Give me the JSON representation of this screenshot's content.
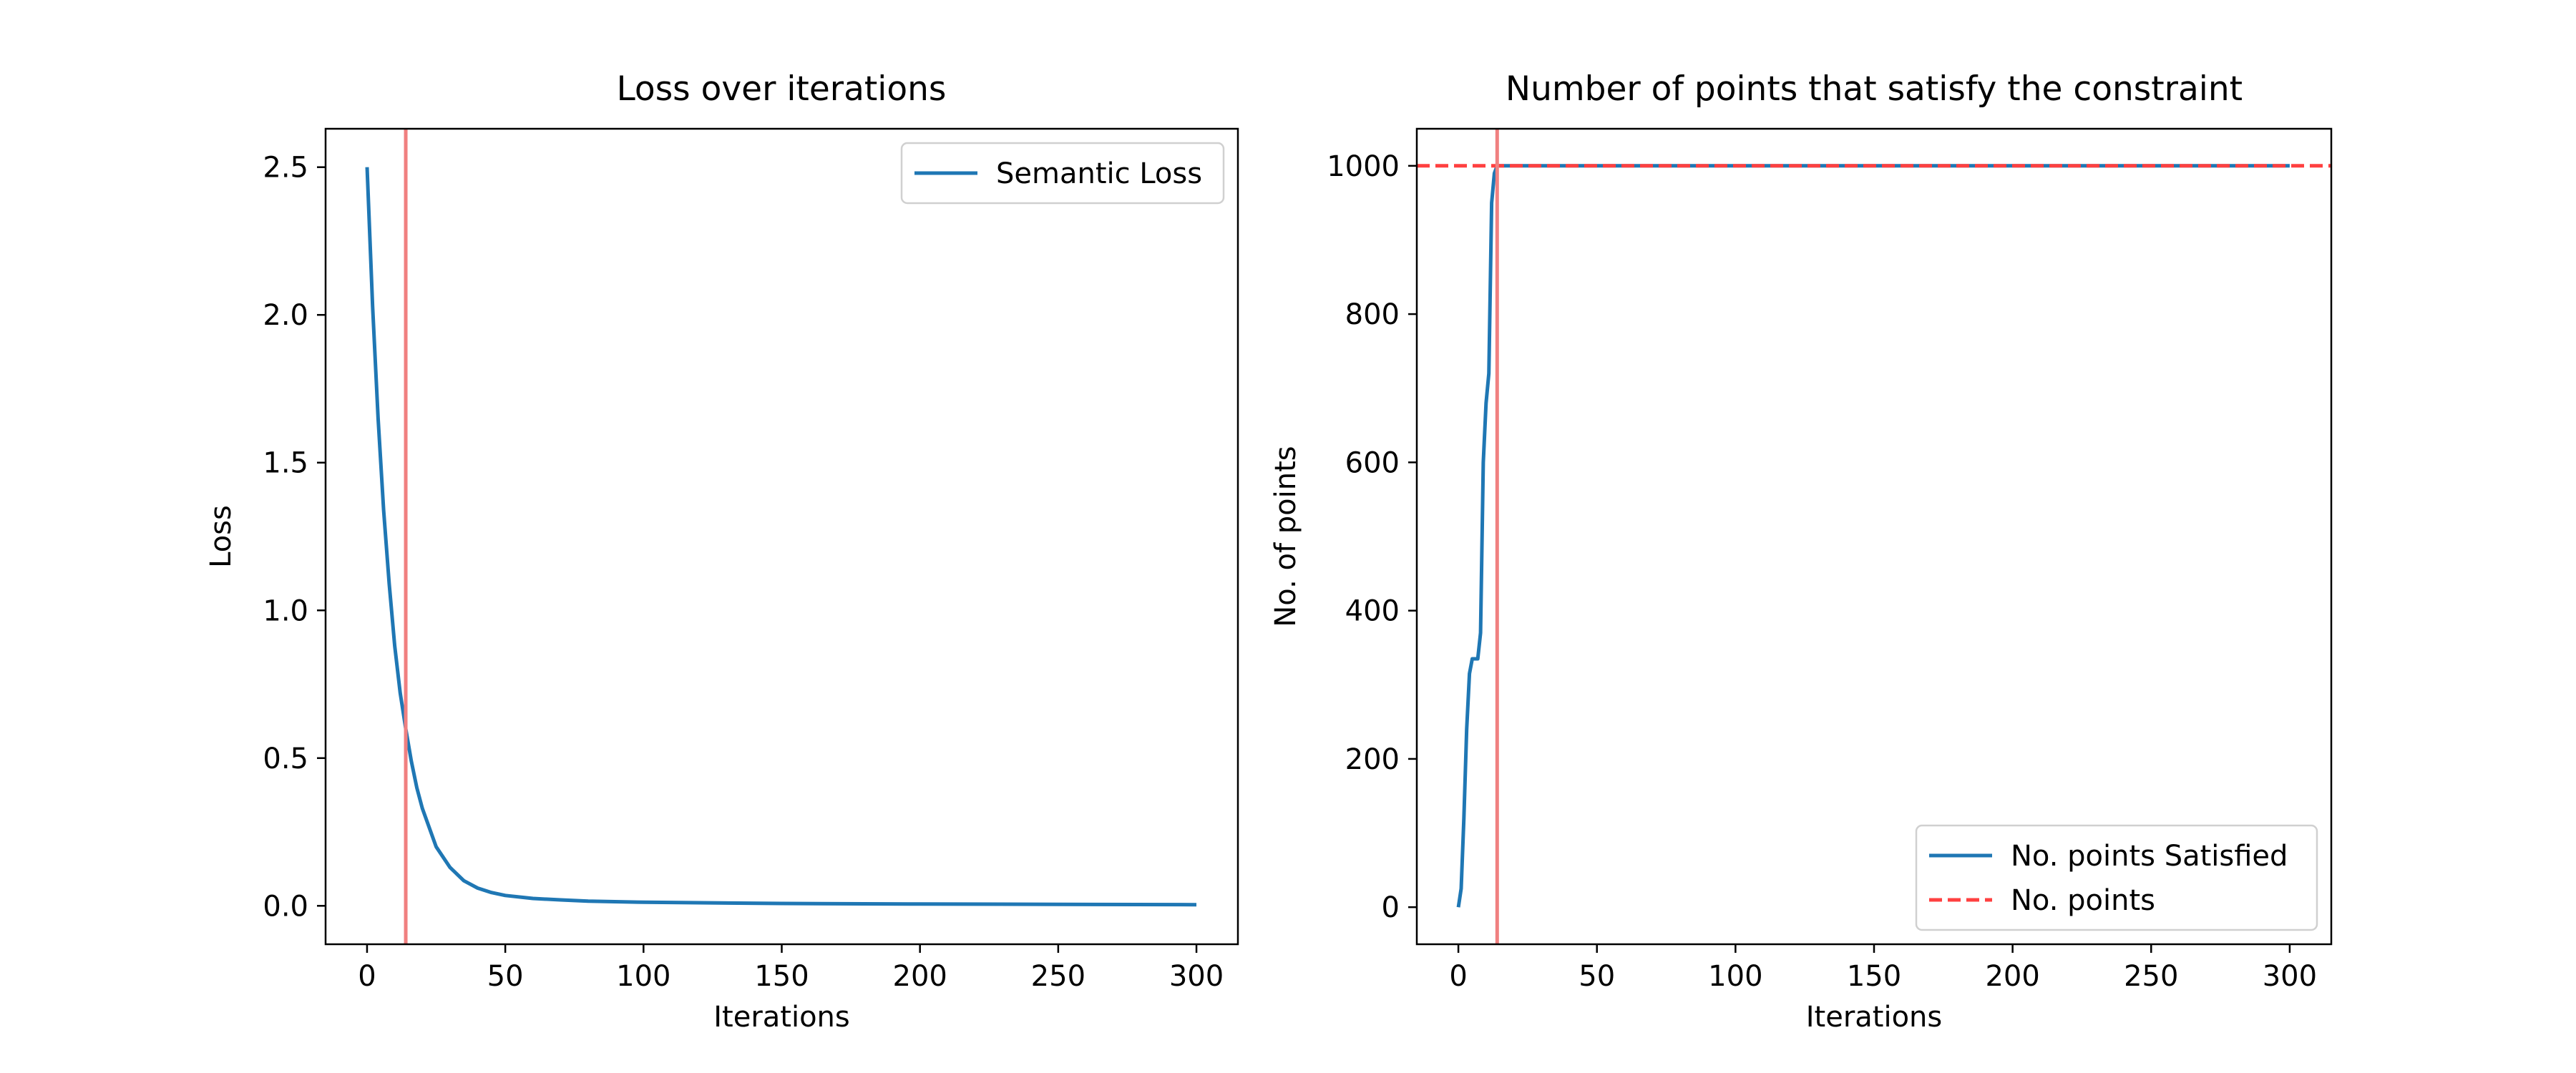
{
  "chart_data": [
    {
      "type": "line",
      "title": "Loss over iterations",
      "xlabel": "Iterations",
      "ylabel": "Loss",
      "xlim": [
        -15,
        315
      ],
      "ylim": [
        -0.13,
        2.63
      ],
      "xticks": [
        0,
        50,
        100,
        150,
        200,
        250,
        300
      ],
      "xtick_labels": [
        "0",
        "50",
        "100",
        "150",
        "200",
        "250",
        "300"
      ],
      "yticks": [
        0.0,
        0.5,
        1.0,
        1.5,
        2.0,
        2.5
      ],
      "ytick_labels": [
        "0.0",
        "0.5",
        "1.0",
        "1.5",
        "2.0",
        "2.5"
      ],
      "grid": false,
      "legend_position": "upper right",
      "series": [
        {
          "name": "Semantic Loss",
          "color": "#1f77b4",
          "style": "solid",
          "x": [
            0,
            2,
            4,
            6,
            8,
            10,
            12,
            14,
            16,
            18,
            20,
            25,
            30,
            35,
            40,
            45,
            50,
            60,
            70,
            80,
            100,
            150,
            200,
            250,
            300
          ],
          "y": [
            2.5,
            2.03,
            1.65,
            1.34,
            1.09,
            0.88,
            0.72,
            0.6,
            0.49,
            0.4,
            0.33,
            0.2,
            0.13,
            0.085,
            0.06,
            0.045,
            0.035,
            0.025,
            0.02,
            0.016,
            0.012,
            0.008,
            0.006,
            0.005,
            0.004
          ]
        }
      ],
      "vlines": [
        {
          "x": 14,
          "color": "#f08080",
          "style": "solid"
        }
      ]
    },
    {
      "type": "line",
      "title": "Number of points that satisfy the constraint",
      "xlabel": "Iterations",
      "ylabel": "No. of points",
      "xlim": [
        -15,
        315
      ],
      "ylim": [
        -50,
        1050
      ],
      "xticks": [
        0,
        50,
        100,
        150,
        200,
        250,
        300
      ],
      "xtick_labels": [
        "0",
        "50",
        "100",
        "150",
        "200",
        "250",
        "300"
      ],
      "yticks": [
        0,
        200,
        400,
        600,
        800,
        1000
      ],
      "ytick_labels": [
        "0",
        "200",
        "400",
        "600",
        "800",
        "1000"
      ],
      "grid": false,
      "legend_position": "lower right",
      "series": [
        {
          "name": "No. points Satisfied",
          "color": "#1f77b4",
          "style": "solid",
          "x": [
            0,
            1,
            2,
            3,
            4,
            5,
            6,
            7,
            8,
            9,
            10,
            11,
            12,
            13,
            14,
            100,
            200,
            300
          ],
          "y": [
            0,
            25,
            120,
            240,
            315,
            335,
            335,
            335,
            370,
            600,
            680,
            720,
            950,
            990,
            1000,
            1000,
            1000,
            1000
          ]
        },
        {
          "name": "No. points",
          "color": "#ff4040",
          "style": "dashed",
          "x": [
            -15,
            315
          ],
          "y": [
            1000,
            1000
          ]
        }
      ],
      "vlines": [
        {
          "x": 14,
          "color": "#f08080",
          "style": "solid"
        }
      ]
    }
  ]
}
